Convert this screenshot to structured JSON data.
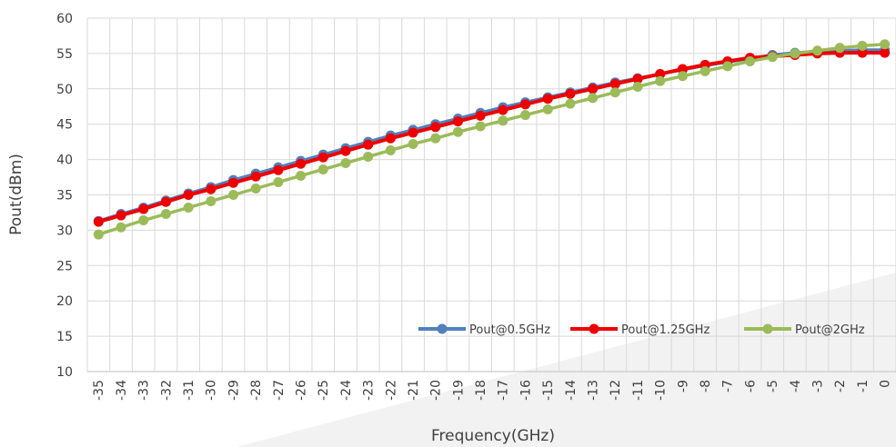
{
  "chart_data": {
    "type": "line",
    "title": "",
    "xlabel": "Frequency(GHz)",
    "ylabel": "Pout(dBm)",
    "categories": [
      "-35",
      "-34",
      "-33",
      "-32",
      "-31",
      "-30",
      "-29",
      "-28",
      "-27",
      "-26",
      "-25",
      "-24",
      "-23",
      "-22",
      "-21",
      "-20",
      "-19",
      "-18",
      "-17",
      "-16",
      "-15",
      "-14",
      "-13",
      "-12",
      "-11",
      "-10",
      "-9",
      "-8",
      "-7",
      "-6",
      "-5",
      "-4",
      "-3",
      "-2",
      "-1",
      "0"
    ],
    "ylim": [
      10,
      60
    ],
    "yticks": [
      10,
      15,
      20,
      25,
      30,
      35,
      40,
      45,
      50,
      55,
      60
    ],
    "grid": true,
    "legend": "bottom-right",
    "series": [
      {
        "name": "Pout@0.5GHz",
        "color": "#4f81bd",
        "values": [
          31.3,
          32.3,
          33.2,
          34.2,
          35.2,
          36.1,
          37.1,
          38.0,
          38.9,
          39.8,
          40.7,
          41.6,
          42.5,
          43.4,
          44.2,
          45.0,
          45.8,
          46.6,
          47.4,
          48.1,
          48.8,
          49.5,
          50.2,
          50.9,
          51.5,
          52.1,
          52.7,
          53.3,
          53.8,
          54.3,
          54.8,
          55.1,
          55.3,
          55.4,
          55.5,
          55.5
        ]
      },
      {
        "name": "Pout@1.25GHz",
        "color": "#ee0000",
        "values": [
          31.2,
          32.1,
          33.0,
          34.0,
          35.0,
          35.8,
          36.7,
          37.6,
          38.5,
          39.4,
          40.3,
          41.2,
          42.1,
          43.0,
          43.8,
          44.6,
          45.4,
          46.2,
          47.0,
          47.8,
          48.6,
          49.3,
          50.0,
          50.7,
          51.4,
          52.1,
          52.8,
          53.4,
          53.9,
          54.4,
          54.6,
          54.8,
          55.0,
          55.1,
          55.1,
          55.1
        ]
      },
      {
        "name": "Pout@2GHz",
        "color": "#9bbb59",
        "values": [
          29.4,
          30.4,
          31.4,
          32.3,
          33.2,
          34.1,
          35.0,
          35.9,
          36.8,
          37.7,
          38.6,
          39.5,
          40.4,
          41.3,
          42.2,
          43.0,
          43.9,
          44.7,
          45.5,
          46.3,
          47.1,
          47.9,
          48.7,
          49.5,
          50.3,
          51.1,
          51.8,
          52.5,
          53.2,
          53.9,
          54.5,
          55.0,
          55.4,
          55.8,
          56.1,
          56.3
        ]
      }
    ]
  }
}
